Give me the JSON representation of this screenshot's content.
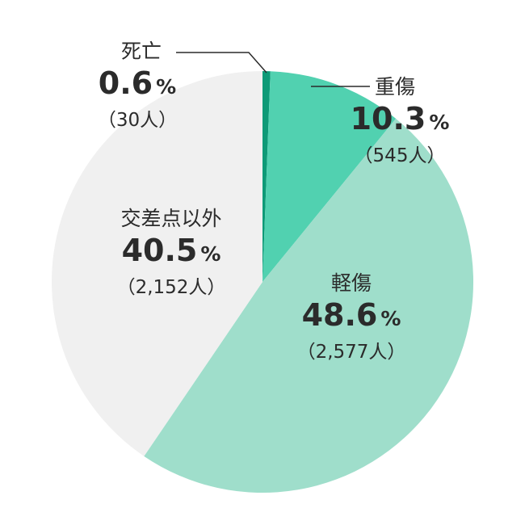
{
  "chart_data": {
    "type": "pie",
    "start_angle_deg": 0,
    "direction": "clockwise",
    "slices": [
      {
        "label": "死亡",
        "value": 0.6,
        "pct_text": "0.6",
        "pct_sign": "%",
        "count_text": "（30人）",
        "color": "#0e9a77"
      },
      {
        "label": "重傷",
        "value": 10.3,
        "pct_text": "10.3",
        "pct_sign": "%",
        "count_text": "（545人）",
        "color": "#51d1b0"
      },
      {
        "label": "軽傷",
        "value": 48.6,
        "pct_text": "48.6",
        "pct_sign": "%",
        "count_text": "（2,577人）",
        "color": "#9fdecb"
      },
      {
        "label": "交差点以外",
        "value": 40.5,
        "pct_text": "40.5",
        "pct_sign": "%",
        "count_text": "（2,152人）",
        "color": "#f0f0f0"
      }
    ]
  }
}
